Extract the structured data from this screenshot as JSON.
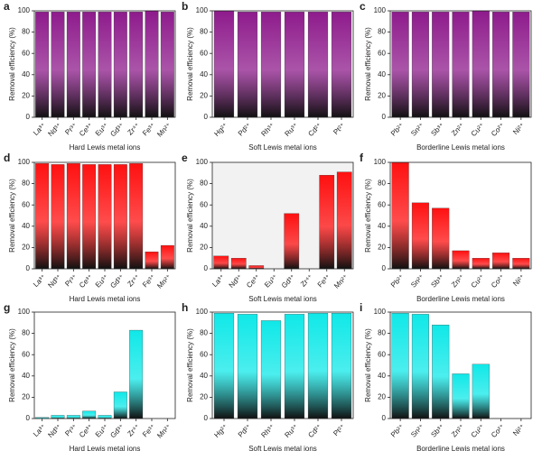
{
  "chart_data": [
    {
      "type": "bar",
      "panel": "a",
      "ylabel": "Removal efficiency (%)",
      "xlabel": "Hard Lewis metal ions",
      "categories": [
        "La³⁺",
        "Nd³⁺",
        "Pr³⁺",
        "Ce³⁺",
        "Eu³⁺",
        "Gd³⁺",
        "Zr⁴⁺",
        "Fe³⁺",
        "Mn²⁺"
      ],
      "values": [
        99,
        99,
        99,
        99,
        99,
        99,
        99,
        100,
        99
      ],
      "color": "#8e1b8c",
      "ylim": [
        0,
        100
      ],
      "yticks": [
        0,
        20,
        40,
        60,
        80,
        100
      ]
    },
    {
      "type": "bar",
      "panel": "b",
      "ylabel": "Removal efficiency (%)",
      "xlabel": "Soft Lewis metal ions",
      "categories": [
        "Hg²⁺",
        "Pd²⁺",
        "Rh³⁺",
        "Ru³⁺",
        "Cd²⁺",
        "Pt²⁺"
      ],
      "values": [
        100,
        99,
        99,
        99,
        99,
        99
      ],
      "color": "#8e1b8c",
      "ylim": [
        0,
        100
      ],
      "yticks": [
        0,
        20,
        40,
        60,
        80,
        100
      ]
    },
    {
      "type": "bar",
      "panel": "c",
      "ylabel": "Removal efficiency (%)",
      "xlabel": "Borderline Lewis metal ions",
      "categories": [
        "Pb²⁺",
        "Sn²⁺",
        "Sb³⁺",
        "Zn²⁺",
        "Cu²⁺",
        "Co²⁺",
        "Ni²⁺"
      ],
      "values": [
        99,
        99,
        99,
        99,
        100,
        99,
        99
      ],
      "color": "#8e1b8c",
      "ylim": [
        0,
        100
      ],
      "yticks": [
        0,
        20,
        40,
        60,
        80,
        100
      ]
    },
    {
      "type": "bar",
      "panel": "d",
      "ylabel": "Removal efficiency (%)",
      "xlabel": "Hard Lewis metal ions",
      "categories": [
        "La³⁺",
        "Nd³⁺",
        "Pr³⁺",
        "Ce³⁺",
        "Eu³⁺",
        "Gd³⁺",
        "Zr⁴⁺",
        "Fe³⁺",
        "Mn²⁺"
      ],
      "values": [
        99,
        98,
        99,
        98,
        98,
        98,
        99,
        16,
        22
      ],
      "color": "#ff1010",
      "ylim": [
        0,
        100
      ],
      "yticks": [
        0,
        20,
        40,
        60,
        80,
        100
      ]
    },
    {
      "type": "bar",
      "panel": "e",
      "ylabel": "Removal efficiency (%)",
      "xlabel": "Soft Lewis metal ions",
      "categories": [
        "La³⁺",
        "Nd³⁺",
        "Ce³⁺",
        "Eu³⁺",
        "Gd³⁺",
        "Zr⁴⁺",
        "Fe³⁺",
        "Mn²⁺"
      ],
      "values": [
        12,
        10,
        3,
        0,
        52,
        0,
        88,
        91
      ],
      "color": "#ff1010",
      "background": "#f2f2f2",
      "ylim": [
        0,
        100
      ],
      "yticks": [
        0,
        20,
        40,
        60,
        80,
        100
      ]
    },
    {
      "type": "bar",
      "panel": "f",
      "ylabel": "Removal efficiency (%)",
      "xlabel": "Borderline Lewis metal ions",
      "categories": [
        "Pb²⁺",
        "Sn²⁺",
        "Sb³⁺",
        "Zn²⁺",
        "Cu²⁺",
        "Co²⁺",
        "Ni²⁺"
      ],
      "values": [
        100,
        62,
        57,
        17,
        10,
        15,
        10
      ],
      "color": "#ff1010",
      "ylim": [
        0,
        100
      ],
      "yticks": [
        0,
        20,
        40,
        60,
        80,
        100
      ]
    },
    {
      "type": "bar",
      "panel": "g",
      "ylabel": "Removal efficiency (%)",
      "xlabel": "Hard Lewis metal ions",
      "categories": [
        "La³⁺",
        "Nd³⁺",
        "Pr³⁺",
        "Ce³⁺",
        "Eu³⁺",
        "Gd³⁺",
        "Zr⁴⁺",
        "Fe³⁺",
        "Mn²⁺"
      ],
      "values": [
        1,
        3,
        3,
        7,
        3,
        25,
        83,
        0,
        0
      ],
      "color": "#10e8e8",
      "ylim": [
        0,
        100
      ],
      "yticks": [
        0,
        20,
        40,
        60,
        80,
        100
      ]
    },
    {
      "type": "bar",
      "panel": "h",
      "ylabel": "Removal efficiency (%)",
      "xlabel": "Soft Lewis metal ions",
      "categories": [
        "Hg²⁺",
        "Pd²⁺",
        "Rh³⁺",
        "Ru³⁺",
        "Cd²⁺",
        "Pt²⁺"
      ],
      "values": [
        99,
        98,
        92,
        98,
        99,
        99
      ],
      "color": "#10e8e8",
      "ylim": [
        0,
        100
      ],
      "yticks": [
        0,
        20,
        40,
        60,
        80,
        100
      ]
    },
    {
      "type": "bar",
      "panel": "i",
      "ylabel": "Removal efficiency (%)",
      "xlabel": "Borderline Lewis metal ions",
      "categories": [
        "Pb²⁺",
        "Sn²⁺",
        "Sb³⁺",
        "Zn²⁺",
        "Cu²⁺",
        "Co²⁺",
        "Ni²⁺"
      ],
      "values": [
        99,
        98,
        88,
        42,
        51,
        0,
        0
      ],
      "color": "#10e8e8",
      "ylim": [
        0,
        100
      ],
      "yticks": [
        0,
        20,
        40,
        60,
        80,
        100
      ]
    }
  ]
}
